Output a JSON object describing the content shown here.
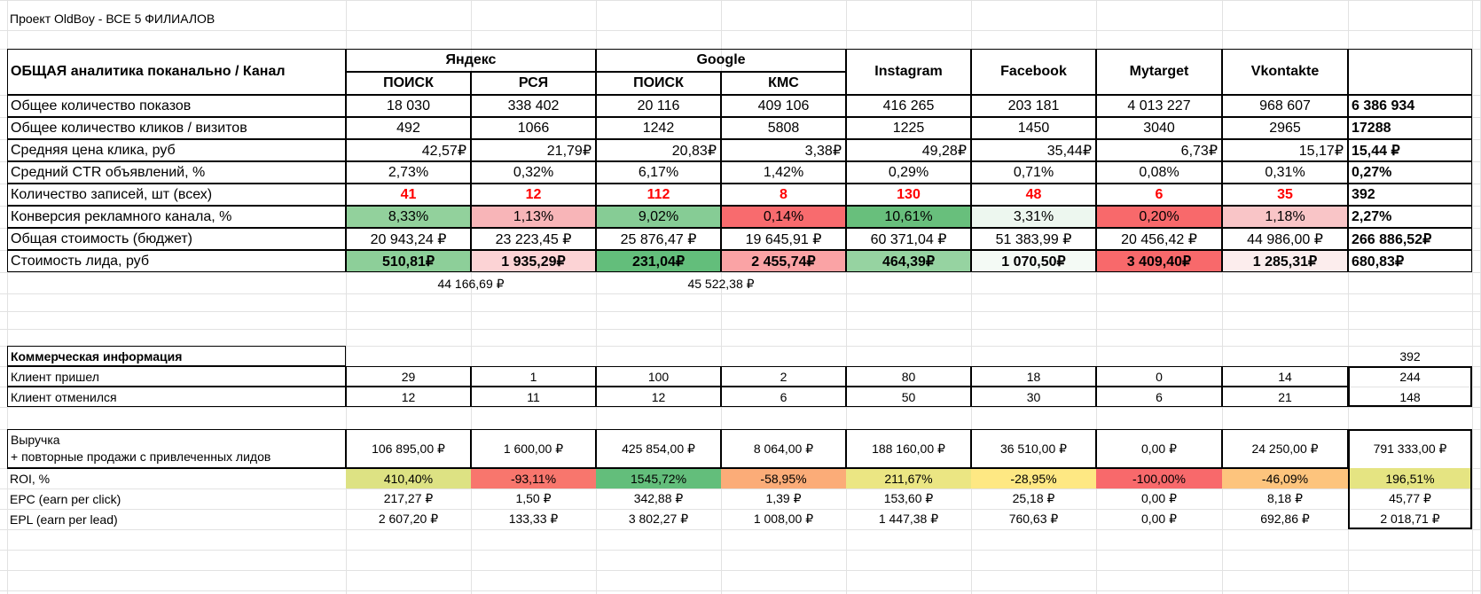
{
  "title": "Проект OldBoy - ВСЕ 5 ФИЛИАЛОВ",
  "analytics": {
    "header_label": "ОБЩАЯ аналитика поканально / Канал",
    "groups": [
      "Яндекс",
      "Google"
    ],
    "channels": [
      "ПОИСК",
      "РСЯ",
      "ПОИСК",
      "КМС",
      "Instagram",
      "Facebook",
      "Mytarget",
      "Vkontakte"
    ],
    "rows": [
      {
        "label": "Общее количество показов",
        "values": [
          "18 030",
          "338 402",
          "20 116",
          "409 106",
          "416 265",
          "203 181",
          "4 013 227",
          "968 607"
        ],
        "total": "6 386 934"
      },
      {
        "label": "Общее количество кликов / визитов",
        "values": [
          "492",
          "1066",
          "1242",
          "5808",
          "1225",
          "1450",
          "3040",
          "2965"
        ],
        "total": "17288"
      },
      {
        "label": "Средняя цена клика, руб",
        "values": [
          "42,57₽",
          "21,79₽",
          "20,83₽",
          "3,38₽",
          "49,28₽",
          "35,44₽",
          "6,73₽",
          "15,17₽"
        ],
        "total": "15,44 ₽"
      },
      {
        "label": "Средний CTR объявлений, %",
        "values": [
          "2,73%",
          "0,32%",
          "6,17%",
          "1,42%",
          "0,29%",
          "0,71%",
          "0,08%",
          "0,31%"
        ],
        "total": "0,27%"
      },
      {
        "label": "Количество записей, шт (всех)",
        "values": [
          "41",
          "12",
          "112",
          "8",
          "130",
          "48",
          "6",
          "35"
        ],
        "total": "392"
      },
      {
        "label": "Конверсия рекламного канала, %",
        "values": [
          "8,33%",
          "1,13%",
          "9,02%",
          "0,14%",
          "10,61%",
          "3,31%",
          "0,20%",
          "1,18%"
        ],
        "total": "2,27%",
        "colors": [
          "#92d19c",
          "#f8b5b8",
          "#86cc95",
          "#f86b6e",
          "#68bf7c",
          "#edf7ef",
          "#f8696b",
          "#f9c5c7"
        ]
      },
      {
        "label": "Общая стоимость (бюджет)",
        "values": [
          "20 943,24 ₽",
          "23 223,45 ₽",
          "25 876,47 ₽",
          "19 645,91 ₽",
          "60 371,04 ₽",
          "51 383,99 ₽",
          "20 456,42 ₽",
          "44 986,00 ₽"
        ],
        "total": "266 886,52₽"
      },
      {
        "label": "Стоимость лида, руб",
        "values": [
          "510,81₽",
          "1 935,29₽",
          "231,04₽",
          "2 455,74₽",
          "464,39₽",
          "1 070,50₽",
          "3 409,40₽",
          "1 285,31₽"
        ],
        "total": "680,83₽",
        "colors": [
          "#8dcf99",
          "#fcd3d5",
          "#63be7b",
          "#faa3a5",
          "#96d3a1",
          "#f4faf5",
          "#f8696b",
          "#fceded"
        ]
      }
    ],
    "subtotals": {
      "yandex": "44 166,69 ₽",
      "google": "45 522,38 ₽"
    }
  },
  "commercial": {
    "header_label": "Коммерческая информация",
    "header_total": "392",
    "rows": [
      {
        "label": "Клиент пришел",
        "values": [
          "29",
          "1",
          "100",
          "2",
          "80",
          "18",
          "0",
          "14"
        ],
        "total": "244"
      },
      {
        "label": "Клиент отменился",
        "values": [
          "12",
          "11",
          "12",
          "6",
          "50",
          "30",
          "6",
          "21"
        ],
        "total": "148"
      }
    ]
  },
  "revenue": {
    "label_line1": "Выручка",
    "label_line2": "+ повторные продажи с привлеченных лидов",
    "values": [
      "106 895,00 ₽",
      "1 600,00 ₽",
      "425 854,00 ₽",
      "8 064,00 ₽",
      "188 160,00 ₽",
      "36 510,00 ₽",
      "0,00 ₽",
      "24 250,00 ₽"
    ],
    "total": "791 333,00 ₽"
  },
  "roi": {
    "label": "ROI, %",
    "values": [
      "410,40%",
      "-93,11%",
      "1545,72%",
      "-58,95%",
      "211,67%",
      "-28,95%",
      "-100,00%",
      "-46,09%"
    ],
    "total": "196,51%",
    "colors": [
      "#dde283",
      "#f8766d",
      "#63be7b",
      "#fbac78",
      "#ebe683",
      "#fee883",
      "#f8696b",
      "#fdc47d"
    ],
    "total_color": "#e5e482"
  },
  "epc": {
    "label": "EPC (earn per click)",
    "values": [
      "217,27 ₽",
      "1,50 ₽",
      "342,88 ₽",
      "1,39 ₽",
      "153,60 ₽",
      "25,18 ₽",
      "0,00 ₽",
      "8,18 ₽"
    ],
    "total": "45,77 ₽"
  },
  "epl": {
    "label": "EPL (earn per lead)",
    "values": [
      "2 607,20 ₽",
      "133,33 ₽",
      "3 802,27 ₽",
      "1 008,00 ₽",
      "1 447,38 ₽",
      "760,63 ₽",
      "0,00 ₽",
      "692,86 ₽"
    ],
    "total": "2 018,71 ₽"
  }
}
